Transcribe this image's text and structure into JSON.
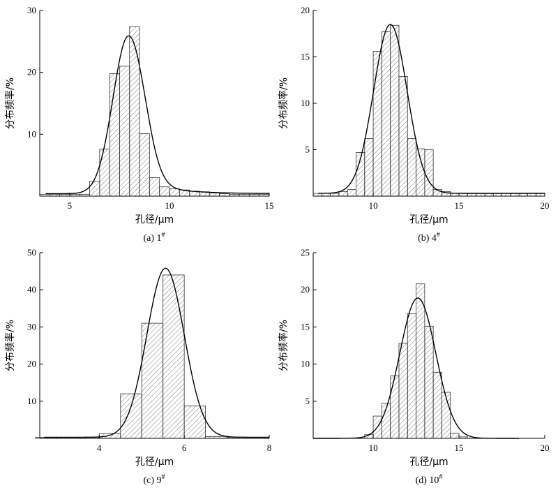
{
  "chart_data": [
    {
      "type": "bar",
      "caption": "(a)  1",
      "caption_sup": "#",
      "xlabel": "孔径/μm",
      "ylabel": "分布频率/%",
      "xlim": [
        3.5,
        15
      ],
      "ylim": [
        0,
        30
      ],
      "xticks": [
        5,
        10,
        15
      ],
      "yticks": [
        10,
        20,
        30
      ],
      "bin_width": 0.5,
      "bins": [
        {
          "x": 3.75,
          "y": 0.3
        },
        {
          "x": 4.25,
          "y": 0.3
        },
        {
          "x": 4.75,
          "y": 0.3
        },
        {
          "x": 5.25,
          "y": 0.3
        },
        {
          "x": 5.75,
          "y": 0.3
        },
        {
          "x": 6.25,
          "y": 2.4
        },
        {
          "x": 6.75,
          "y": 7.6
        },
        {
          "x": 7.25,
          "y": 19.8
        },
        {
          "x": 7.75,
          "y": 21.0
        },
        {
          "x": 8.25,
          "y": 27.4
        },
        {
          "x": 8.75,
          "y": 10.1
        },
        {
          "x": 9.25,
          "y": 3.0
        },
        {
          "x": 9.75,
          "y": 1.5
        },
        {
          "x": 10.25,
          "y": 1.2
        },
        {
          "x": 10.75,
          "y": 1.0
        },
        {
          "x": 11.25,
          "y": 0.8
        },
        {
          "x": 11.75,
          "y": 0.7
        },
        {
          "x": 12.25,
          "y": 0.5
        },
        {
          "x": 12.75,
          "y": 0.4
        },
        {
          "x": 13.25,
          "y": 0.3
        },
        {
          "x": 13.75,
          "y": 0.3
        },
        {
          "x": 14.25,
          "y": 0.3
        },
        {
          "x": 14.75,
          "y": 0.3
        }
      ],
      "fit": {
        "mu": 7.95,
        "sigma": 0.78,
        "amp": 25.5,
        "baseline": 0.4,
        "tail_amp": 1.5,
        "tail_decay": 1.6,
        "x_start": 3.8
      }
    },
    {
      "type": "bar",
      "caption": "(b)  4",
      "caption_sup": "#",
      "xlabel": "孔径/μm",
      "ylabel": "分布频率/%",
      "xlim": [
        6.5,
        20
      ],
      "ylim": [
        0,
        20
      ],
      "xticks": [
        10,
        15,
        20
      ],
      "yticks": [
        5,
        10,
        15,
        20
      ],
      "bin_width": 0.5,
      "bins": [
        {
          "x": 6.75,
          "y": 0.3
        },
        {
          "x": 7.25,
          "y": 0.3
        },
        {
          "x": 7.75,
          "y": 0.3
        },
        {
          "x": 8.25,
          "y": 0.5
        },
        {
          "x": 8.75,
          "y": 0.7
        },
        {
          "x": 9.25,
          "y": 4.7
        },
        {
          "x": 9.75,
          "y": 6.2
        },
        {
          "x": 10.25,
          "y": 15.6
        },
        {
          "x": 10.75,
          "y": 17.7
        },
        {
          "x": 11.25,
          "y": 18.4
        },
        {
          "x": 11.75,
          "y": 12.9
        },
        {
          "x": 12.25,
          "y": 6.2
        },
        {
          "x": 12.75,
          "y": 5.1
        },
        {
          "x": 13.25,
          "y": 5.0
        },
        {
          "x": 13.75,
          "y": 0.7
        },
        {
          "x": 14.25,
          "y": 0.5
        },
        {
          "x": 14.75,
          "y": 0.3
        },
        {
          "x": 15.25,
          "y": 0.3
        },
        {
          "x": 15.75,
          "y": 0.3
        },
        {
          "x": 16.25,
          "y": 0.3
        },
        {
          "x": 16.75,
          "y": 0.3
        },
        {
          "x": 17.25,
          "y": 0.3
        },
        {
          "x": 17.75,
          "y": 0.3
        },
        {
          "x": 18.25,
          "y": 0.3
        },
        {
          "x": 18.75,
          "y": 0.3
        },
        {
          "x": 19.25,
          "y": 0.3
        },
        {
          "x": 19.75,
          "y": 0.3
        }
      ],
      "fit": {
        "mu": 11.0,
        "sigma": 0.98,
        "amp": 18.2,
        "baseline": 0.3,
        "tail_amp": 0,
        "tail_decay": 1,
        "x_start": 6.8
      }
    },
    {
      "type": "bar",
      "caption": "(c)  9",
      "caption_sup": "#",
      "xlabel": "孔径/μm",
      "ylabel": "分布频率/%",
      "xlim": [
        2.6,
        8
      ],
      "ylim": [
        0,
        50
      ],
      "xticks": [
        4,
        6,
        8
      ],
      "yticks": [
        10,
        20,
        30,
        40,
        50
      ],
      "bin_width": 0.5,
      "bins": [
        {
          "x": 2.75,
          "y": 0.3
        },
        {
          "x": 3.25,
          "y": 0.3
        },
        {
          "x": 3.75,
          "y": 0.3
        },
        {
          "x": 4.25,
          "y": 1.3
        },
        {
          "x": 4.75,
          "y": 12.0
        },
        {
          "x": 5.25,
          "y": 31.0
        },
        {
          "x": 5.75,
          "y": 44.0
        },
        {
          "x": 6.25,
          "y": 8.7
        },
        {
          "x": 6.75,
          "y": 0.5
        },
        {
          "x": 7.25,
          "y": 0.3
        },
        {
          "x": 7.75,
          "y": 0.3
        }
      ],
      "fit": {
        "mu": 5.56,
        "sigma": 0.44,
        "amp": 45.5,
        "baseline": 0.3,
        "tail_amp": 0,
        "tail_decay": 1,
        "x_start": 2.7
      }
    },
    {
      "type": "bar",
      "caption": "(d)  10",
      "caption_sup": "#",
      "xlabel": "孔径/μm",
      "ylabel": "分布频率/%",
      "xlim": [
        6.5,
        20
      ],
      "ylim": [
        0,
        25
      ],
      "xticks": [
        10,
        15,
        20
      ],
      "yticks": [
        5,
        10,
        15,
        20,
        25
      ],
      "bin_width": 0.5,
      "bins": [
        {
          "x": 9.75,
          "y": 0.5
        },
        {
          "x": 10.25,
          "y": 3.0
        },
        {
          "x": 10.75,
          "y": 4.7
        },
        {
          "x": 11.25,
          "y": 8.4
        },
        {
          "x": 11.75,
          "y": 12.8
        },
        {
          "x": 12.25,
          "y": 16.8
        },
        {
          "x": 12.75,
          "y": 20.8
        },
        {
          "x": 13.25,
          "y": 15.1
        },
        {
          "x": 13.75,
          "y": 8.9
        },
        {
          "x": 14.25,
          "y": 6.2
        },
        {
          "x": 14.75,
          "y": 0.7
        },
        {
          "x": 15.25,
          "y": 0.2
        }
      ],
      "fit": {
        "mu": 12.6,
        "sigma": 1.05,
        "amp": 18.9,
        "baseline": 0.0,
        "tail_amp": 0,
        "tail_decay": 1,
        "x_start": 6.5,
        "x_end": 18.5
      }
    }
  ]
}
